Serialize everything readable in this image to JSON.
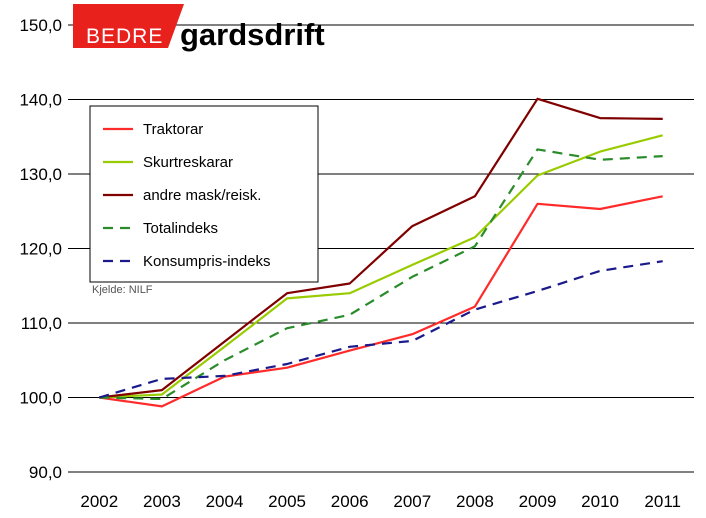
{
  "logo": {
    "prefix": "BEDRE",
    "main": "gardsdrift"
  },
  "source_note": "Kjelde: NILF",
  "colors": {
    "plot_background": "#ffffff",
    "gridline": "#000000",
    "logo_red": "#e8211c"
  },
  "chart_data": {
    "type": "line",
    "title": "",
    "xlabel": "",
    "ylabel": "",
    "x": [
      "2002",
      "2003",
      "2004",
      "2005",
      "2006",
      "2007",
      "2008",
      "2009",
      "2010",
      "2011"
    ],
    "ylim": [
      90,
      150
    ],
    "yticks": [
      "90,0",
      "100,0",
      "110,0",
      "120,0",
      "130,0",
      "140,0",
      "150,0"
    ],
    "grid": true,
    "legend_position": "upper-left inside plot",
    "series": [
      {
        "name": "Traktorar",
        "color": "#ff2a2a",
        "dash": "solid",
        "values": [
          100.0,
          98.8,
          102.8,
          104.0,
          106.3,
          108.5,
          112.2,
          126.0,
          125.3,
          127.0
        ]
      },
      {
        "name": "Skurtreskarar",
        "color": "#99cc00",
        "dash": "solid",
        "values": [
          100.0,
          100.4,
          106.8,
          113.3,
          114.0,
          117.8,
          121.5,
          129.8,
          133.0,
          135.2
        ]
      },
      {
        "name": "andre mask/reisk.",
        "color": "#800000",
        "dash": "solid",
        "values": [
          100.0,
          101.0,
          107.5,
          114.0,
          115.3,
          123.0,
          127.0,
          140.1,
          137.5,
          137.4
        ]
      },
      {
        "name": "Totalindeks",
        "color": "#2a8c2a",
        "dash": "dashed",
        "values": [
          100.0,
          99.8,
          105.0,
          109.3,
          111.1,
          116.2,
          120.3,
          133.3,
          131.9,
          132.4
        ]
      },
      {
        "name": "Konsumpris-indeks",
        "color": "#1a1a8c",
        "dash": "dashed",
        "values": [
          100.0,
          102.5,
          102.9,
          104.5,
          106.8,
          107.6,
          111.8,
          114.3,
          117.0,
          118.3
        ]
      }
    ]
  }
}
